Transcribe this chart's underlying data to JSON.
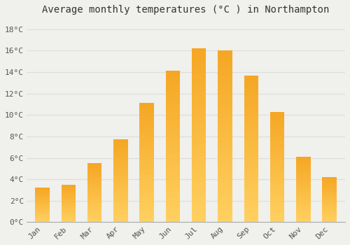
{
  "months": [
    "Jan",
    "Feb",
    "Mar",
    "Apr",
    "May",
    "Jun",
    "Jul",
    "Aug",
    "Sep",
    "Oct",
    "Nov",
    "Dec"
  ],
  "temperatures": [
    3.2,
    3.5,
    5.5,
    7.7,
    11.1,
    14.1,
    16.2,
    16.0,
    13.7,
    10.3,
    6.1,
    4.2
  ],
  "title": "Average monthly temperatures (°C ) in Northampton",
  "bar_color_dark": "#F5A623",
  "bar_color_light": "#FFD060",
  "background_color": "#F0F0EC",
  "grid_color": "#DDDDDD",
  "ylabel_ticks": [
    "0°C",
    "2°C",
    "4°C",
    "6°C",
    "8°C",
    "10°C",
    "12°C",
    "14°C",
    "16°C",
    "18°C"
  ],
  "ytick_values": [
    0,
    2,
    4,
    6,
    8,
    10,
    12,
    14,
    16,
    18
  ],
  "ylim": [
    0,
    19.0
  ],
  "title_fontsize": 10,
  "tick_fontsize": 8,
  "bar_width": 0.55
}
